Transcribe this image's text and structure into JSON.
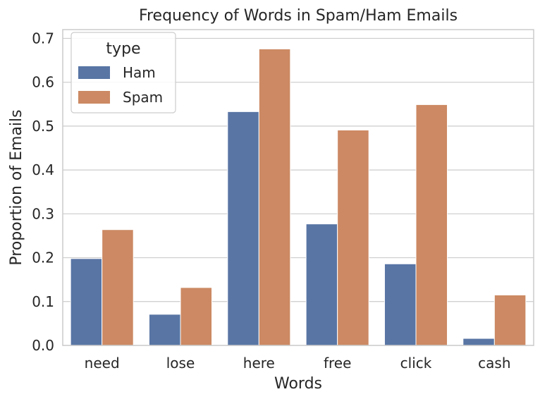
{
  "chart_data": {
    "type": "bar",
    "title": "Frequency of Words in Spam/Ham Emails",
    "xlabel": "Words",
    "ylabel": "Proportion of Emails",
    "categories": [
      "need",
      "lose",
      "here",
      "free",
      "click",
      "cash"
    ],
    "series": [
      {
        "name": "Ham",
        "color": "#5875a4",
        "values": [
          0.198,
          0.071,
          0.533,
          0.277,
          0.186,
          0.016
        ]
      },
      {
        "name": "Spam",
        "color": "#cc8963",
        "values": [
          0.264,
          0.132,
          0.676,
          0.491,
          0.549,
          0.115
        ]
      }
    ],
    "ylim": [
      0,
      0.72
    ],
    "yticks": [
      0.0,
      0.1,
      0.2,
      0.3,
      0.4,
      0.5,
      0.6,
      0.7
    ],
    "ytick_labels": [
      "0.0",
      "0.1",
      "0.2",
      "0.3",
      "0.4",
      "0.5",
      "0.6",
      "0.7"
    ],
    "grid": true,
    "legend": {
      "title": "type",
      "position": "top-left"
    }
  }
}
